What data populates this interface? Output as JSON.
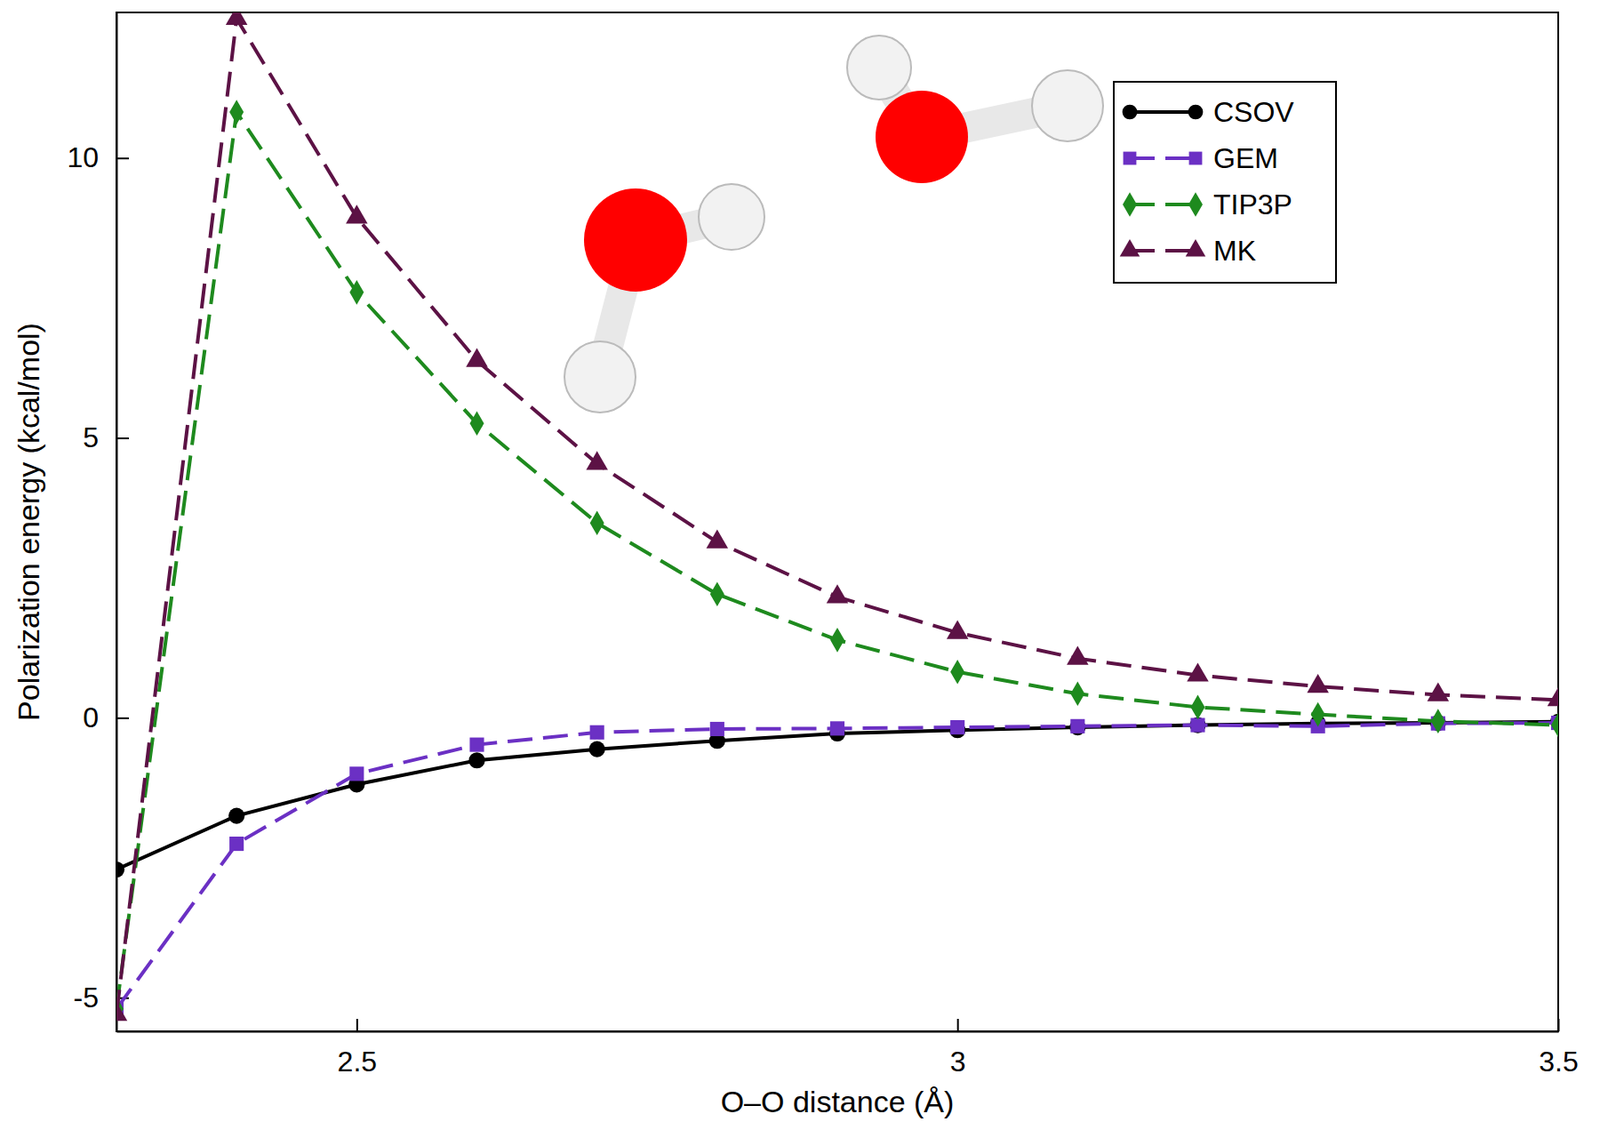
{
  "chart_data": {
    "type": "line",
    "x_label": "O–O distance (Å)",
    "y_label": "Polarization energy (kcal/mol)",
    "x": [
      2.3,
      2.4,
      2.5,
      2.6,
      2.7,
      2.8,
      2.9,
      3.0,
      3.1,
      3.2,
      3.3,
      3.4,
      3.5
    ],
    "series": [
      {
        "name": "CSOV",
        "color": "#000000",
        "marker": "circle",
        "line_style": "solid",
        "values": [
          -2.71,
          -1.75,
          -1.19,
          -0.76,
          -0.56,
          -0.41,
          -0.28,
          -0.22,
          -0.17,
          -0.13,
          -0.1,
          -0.09,
          -0.07
        ]
      },
      {
        "name": "GEM",
        "color": "#6b30c4",
        "marker": "square",
        "line_style": "dashed",
        "values": [
          -5.2,
          -2.25,
          -1.0,
          -0.48,
          -0.26,
          -0.2,
          -0.19,
          -0.17,
          -0.15,
          -0.13,
          -0.15,
          -0.1,
          -0.09
        ]
      },
      {
        "name": "TIP3P",
        "color": "#1e8a1e",
        "marker": "diamond",
        "line_style": "dashed",
        "values": [
          -5.2,
          10.82,
          7.6,
          5.26,
          3.48,
          2.21,
          1.39,
          0.82,
          0.43,
          0.19,
          0.06,
          -0.06,
          -0.13
        ]
      },
      {
        "name": "MK",
        "color": "#5c1245",
        "marker": "triangle",
        "line_style": "dashed",
        "values": [
          -5.3,
          12.49,
          8.94,
          6.38,
          4.54,
          3.14,
          2.16,
          1.52,
          1.06,
          0.76,
          0.56,
          0.41,
          0.32
        ]
      }
    ],
    "xlim": [
      2.3,
      3.5
    ],
    "xticks": [
      2.5,
      3,
      3.5
    ],
    "ylim": [
      -5.6,
      12.6
    ],
    "yticks": [
      -5,
      0,
      5,
      10
    ],
    "legend": "upper right",
    "grid": false
  }
}
